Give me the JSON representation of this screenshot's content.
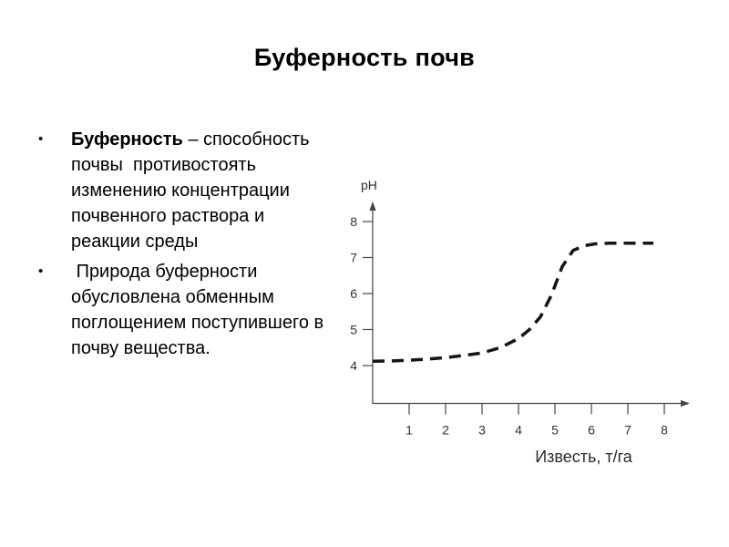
{
  "slide": {
    "title": "Буферность почв",
    "bullets": [
      {
        "lead": "Буферность",
        "rest": " – способность\nпочвы  противостоять\nизменению концентрации\nпочвенного раствора и\nреакции среды"
      },
      {
        "lead": "",
        "rest": " Природа буферности\nобусловлена обменным\nпоглощением поступившего в\nпочву вещества."
      }
    ]
  },
  "chart_data": {
    "type": "line",
    "title": "",
    "xlabel": "Известь, т/га",
    "ylabel": "pH",
    "x_ticks": [
      1,
      2,
      3,
      4,
      5,
      6,
      7,
      8
    ],
    "y_ticks": [
      4,
      5,
      6,
      7,
      8
    ],
    "xlim": [
      0,
      8.75
    ],
    "ylim": [
      3.45,
      8.55
    ],
    "grid": false,
    "legend": "none",
    "line_style": "dashed",
    "axis_color": "#444444",
    "tick_label_color": "#333333",
    "series": [
      {
        "name": "pH",
        "color": "#151515",
        "points": [
          [
            0,
            4.12
          ],
          [
            0.5,
            4.13
          ],
          [
            1,
            4.15
          ],
          [
            1.5,
            4.18
          ],
          [
            2,
            4.22
          ],
          [
            2.5,
            4.28
          ],
          [
            3,
            4.35
          ],
          [
            3.5,
            4.5
          ],
          [
            4,
            4.75
          ],
          [
            4.3,
            5.0
          ],
          [
            4.6,
            5.35
          ],
          [
            4.9,
            5.95
          ],
          [
            5.2,
            6.75
          ],
          [
            5.5,
            7.2
          ],
          [
            5.8,
            7.33
          ],
          [
            6.1,
            7.38
          ],
          [
            6.5,
            7.4
          ],
          [
            7,
            7.4
          ],
          [
            7.7,
            7.4
          ]
        ]
      }
    ]
  }
}
